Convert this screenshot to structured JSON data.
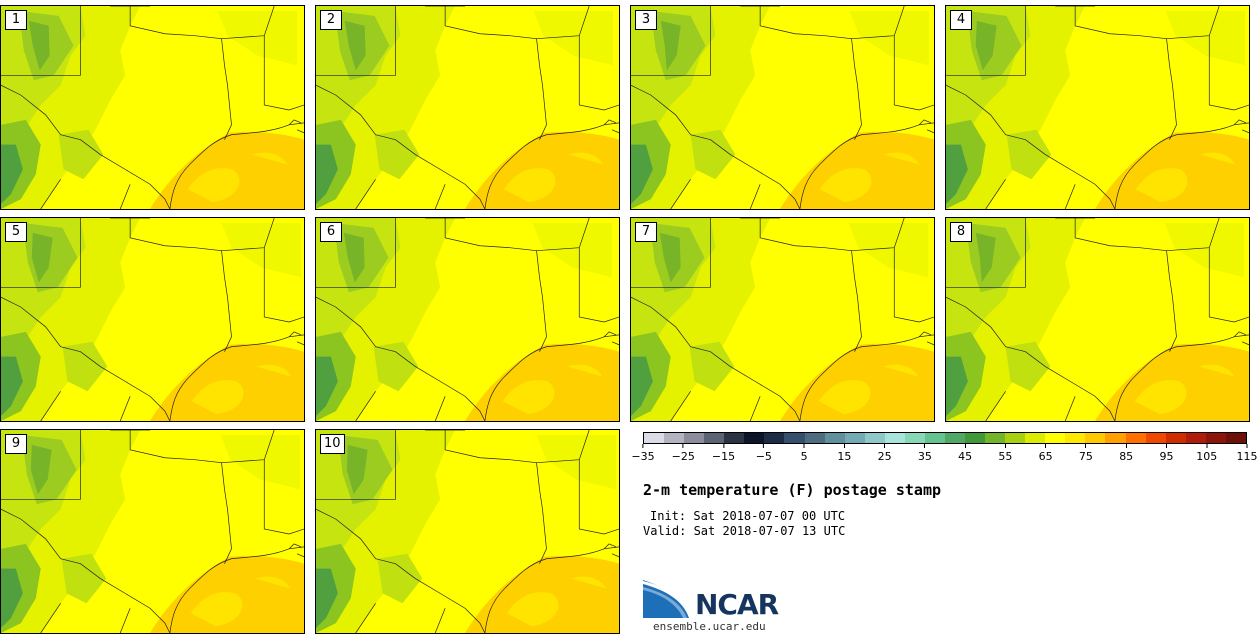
{
  "panels": [
    {
      "label": "1"
    },
    {
      "label": "2"
    },
    {
      "label": "3"
    },
    {
      "label": "4"
    },
    {
      "label": "5"
    },
    {
      "label": "6"
    },
    {
      "label": "7"
    },
    {
      "label": "8"
    },
    {
      "label": "9"
    },
    {
      "label": "10"
    }
  ],
  "colorbar": {
    "colors": [
      "#dcdce6",
      "#b4b4c0",
      "#8c8c9c",
      "#5c6474",
      "#2c3444",
      "#0c1428",
      "#1c2c44",
      "#34506c",
      "#4c6c80",
      "#60909c",
      "#74aab4",
      "#90c8c8",
      "#a8e4dc",
      "#88d8b8",
      "#64c490",
      "#50a864",
      "#409838",
      "#74b428",
      "#a8d010",
      "#dcec00",
      "#ffff00",
      "#ffe800",
      "#ffc800",
      "#ffa000",
      "#ff7000",
      "#f04800",
      "#d02c00",
      "#b01c0c",
      "#8c1408",
      "#6c1008"
    ],
    "tick_labels": [
      "−35",
      "−25",
      "−15",
      "−5",
      "5",
      "15",
      "25",
      "35",
      "45",
      "55",
      "65",
      "75",
      "85",
      "95",
      "105",
      "115"
    ]
  },
  "title": "2-m temperature (F) postage stamp",
  "init": "Init: Sat 2018-07-07 00 UTC",
  "valid": "Valid: Sat 2018-07-07 13 UTC",
  "logo_text": "NCAR",
  "site": "ensemble.ucar.edu"
}
